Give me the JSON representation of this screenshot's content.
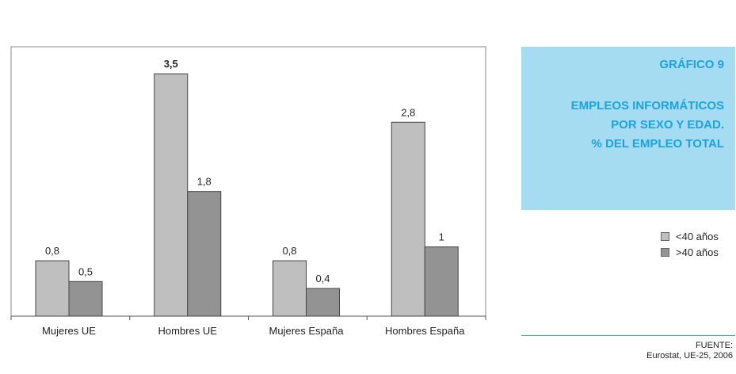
{
  "panel": {
    "label": "GRÁFICO 9",
    "title_lines": [
      "EMPLEOS INFORMÁTICOS",
      "POR SEXO Y EDAD.",
      "% DEL EMPLEO TOTAL"
    ]
  },
  "source": {
    "heading": "FUENTE:",
    "text": "Eurostat, UE-25, 2006"
  },
  "chart_data": {
    "type": "bar",
    "categories": [
      "Mujeres UE",
      "Hombres UE",
      "Mujeres España",
      "Hombres España"
    ],
    "series": [
      {
        "name": "<40 años",
        "color": "#bfbfbf",
        "values": [
          0.8,
          3.5,
          0.8,
          2.8
        ],
        "labels": [
          "0,8",
          "3,5",
          "0,8",
          "2,8"
        ]
      },
      {
        "name": ">40 años",
        "color": "#939393",
        "values": [
          0.5,
          1.8,
          0.4,
          1.0
        ],
        "labels": [
          "0,5",
          "1,8",
          "0,4",
          "1"
        ]
      }
    ],
    "bold_labels": [
      "3,5"
    ],
    "ylim": [
      0,
      3.5
    ],
    "grid": false,
    "legend": "right"
  }
}
